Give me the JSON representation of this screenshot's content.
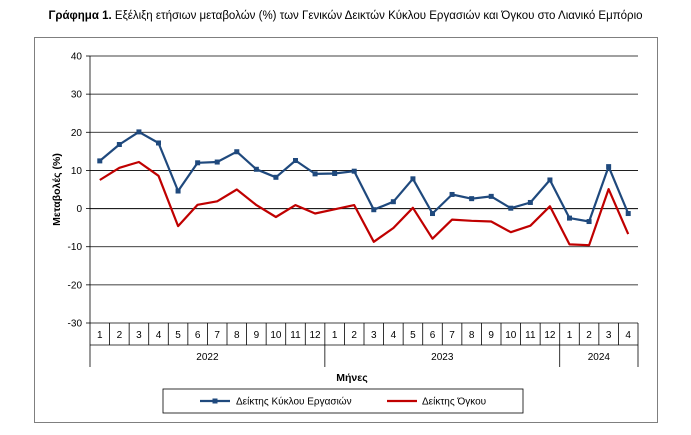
{
  "title": {
    "prefix": "Γράφημα 1.",
    "text": "Εξέλιξη ετήσιων μεταβολών (%) των Γενικών Δεικτών Κύκλου Εργασιών και Όγκου στο Λιανικό Εμπόριο"
  },
  "chart_data": {
    "type": "line",
    "ylabel": "Μεταβολές  (%)",
    "xlabel": "Μήνες",
    "ylim": [
      -30,
      40
    ],
    "yticks": [
      -30,
      -20,
      -10,
      0,
      10,
      20,
      30,
      40
    ],
    "grid": true,
    "legend_position": "bottom",
    "categories": [
      "1",
      "2",
      "3",
      "4",
      "5",
      "6",
      "7",
      "8",
      "9",
      "10",
      "11",
      "12",
      "1",
      "2",
      "3",
      "4",
      "5",
      "6",
      "7",
      "8",
      "9",
      "10",
      "11",
      "12",
      "1",
      "2",
      "3",
      "4"
    ],
    "year_groups": [
      {
        "label": "2022",
        "count": 12
      },
      {
        "label": "2023",
        "count": 12
      },
      {
        "label": "2024",
        "count": 4
      }
    ],
    "series": [
      {
        "name": "Δείκτης Κύκλου Εργασιών",
        "color": "#1f497d",
        "marker": "square",
        "values": [
          12.5,
          16.8,
          20.1,
          17.2,
          4.6,
          12.0,
          12.2,
          14.9,
          10.3,
          8.2,
          12.6,
          9.1,
          9.2,
          9.8,
          -0.3,
          1.8,
          7.8,
          -1.3,
          3.7,
          2.6,
          3.2,
          0.1,
          1.6,
          7.5,
          -2.5,
          -3.4,
          11.0,
          -1.3
        ]
      },
      {
        "name": "Δείκτης Όγκου",
        "color": "#c00000",
        "marker": "none",
        "values": [
          7.5,
          10.7,
          12.2,
          8.6,
          -4.6,
          1.0,
          1.9,
          5.0,
          0.9,
          -2.2,
          0.9,
          -1.3,
          -0.2,
          0.9,
          -8.7,
          -5.1,
          0.2,
          -7.9,
          -2.9,
          -3.2,
          -3.4,
          -6.2,
          -4.5,
          0.6,
          -9.4,
          -9.6,
          5.1,
          -6.7
        ]
      }
    ]
  }
}
